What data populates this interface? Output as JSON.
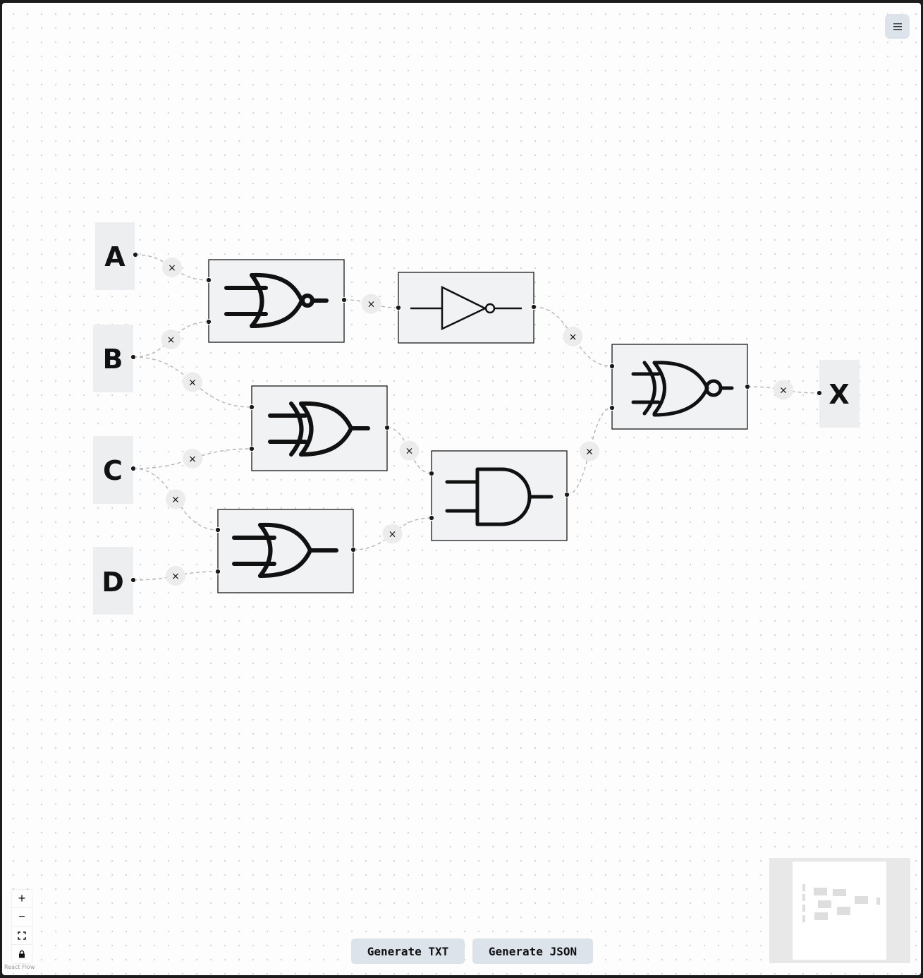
{
  "app": {
    "attribution": "React Flow"
  },
  "menu": {
    "icon": "hamburger-menu-icon"
  },
  "inputs": [
    {
      "label": "A"
    },
    {
      "label": "B"
    },
    {
      "label": "C"
    },
    {
      "label": "D"
    }
  ],
  "output": {
    "label": "X"
  },
  "gates": [
    {
      "id": "nor1",
      "type": "NOR"
    },
    {
      "id": "not1",
      "type": "NOT"
    },
    {
      "id": "xor1",
      "type": "XOR"
    },
    {
      "id": "or1",
      "type": "OR"
    },
    {
      "id": "and1",
      "type": "AND"
    },
    {
      "id": "xnor1",
      "type": "XNOR"
    }
  ],
  "edges": [
    {
      "from": "A",
      "to": "nor1"
    },
    {
      "from": "B",
      "to": "nor1"
    },
    {
      "from": "B",
      "to": "xor1"
    },
    {
      "from": "C",
      "to": "xor1"
    },
    {
      "from": "C",
      "to": "or1"
    },
    {
      "from": "D",
      "to": "or1"
    },
    {
      "from": "nor1",
      "to": "not1"
    },
    {
      "from": "not1",
      "to": "xnor1"
    },
    {
      "from": "xor1",
      "to": "and1"
    },
    {
      "from": "or1",
      "to": "and1"
    },
    {
      "from": "and1",
      "to": "xnor1"
    },
    {
      "from": "xnor1",
      "to": "X"
    }
  ],
  "edge_delete_glyph": "×",
  "footer": {
    "txt_label": "Generate TXT",
    "json_label": "Generate JSON"
  },
  "controls": {
    "zoom_in": "+",
    "zoom_out": "−",
    "fit_view": "fit-view-icon",
    "lock": "lock-icon"
  }
}
